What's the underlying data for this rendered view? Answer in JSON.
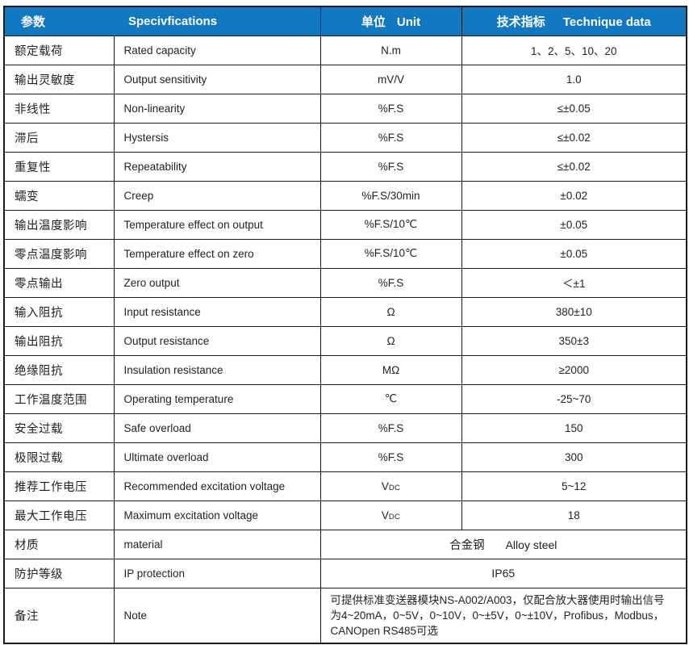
{
  "colors": {
    "header_bg": "#1179C1",
    "header_text": "#ffffff",
    "grid_line": "#1a1a1a",
    "body_text": "#222222"
  },
  "table": {
    "header": {
      "param_cn": "参数",
      "spec_en": "Specivfications",
      "unit_cn": "单位",
      "unit_en": "Unit",
      "data_cn": "技术指标",
      "data_en": "Technique data"
    },
    "rows": [
      {
        "cn": "额定载荷",
        "en": "Rated capacity",
        "unit": "N.m",
        "value": "1、2、5、10、20"
      },
      {
        "cn": "输出灵敏度",
        "en": "Output sensitivity",
        "unit": "mV/V",
        "value": "1.0"
      },
      {
        "cn": "非线性",
        "en": "Non-linearity",
        "unit": "%F.S",
        "value": "≤±0.05"
      },
      {
        "cn": "滞后",
        "en": "Hystersis",
        "unit": "%F.S",
        "value": "≤±0.02"
      },
      {
        "cn": "重复性",
        "en": "Repeatability",
        "unit": "%F.S",
        "value": "≤±0.02"
      },
      {
        "cn": "蠕变",
        "en": "Creep",
        "unit": "%F.S/30min",
        "value": "±0.02"
      },
      {
        "cn": "输出温度影响",
        "en": "Temperature effect on output",
        "unit": "%F.S/10℃",
        "value": "±0.05"
      },
      {
        "cn": "零点温度影响",
        "en": "Temperature effect on zero",
        "unit": "%F.S/10℃",
        "value": "±0.05"
      },
      {
        "cn": "零点输出",
        "en": "Zero output",
        "unit": "%F.S",
        "value": "＜±1"
      },
      {
        "cn": "输入阻抗",
        "en": "Input resistance",
        "unit": "Ω",
        "value": "380±10"
      },
      {
        "cn": "输出阻抗",
        "en": "Output resistance",
        "unit": "Ω",
        "value": "350±3"
      },
      {
        "cn": "绝缘阻抗",
        "en": "Insulation resistance",
        "unit": "MΩ",
        "value": "≥2000"
      },
      {
        "cn": "工作温度范围",
        "en": "Operating temperature",
        "unit": "℃",
        "value": "-25~70"
      },
      {
        "cn": "安全过载",
        "en": "Safe overload",
        "unit": "%F.S",
        "value": "150"
      },
      {
        "cn": "极限过载",
        "en": "Ultimate overload",
        "unit": "%F.S",
        "value": "300"
      },
      {
        "cn": "推荐工作电压",
        "en": "Recommended excitation voltage",
        "unit": {
          "main": "V",
          "sub": "DC"
        },
        "value": "5~12"
      },
      {
        "cn": "最大工作电压",
        "en": "Maximum excitation voltage",
        "unit": {
          "main": "V",
          "sub": "DC"
        },
        "value": "18"
      }
    ],
    "merged_rows": [
      {
        "cn": "材质",
        "en": "material",
        "value_cn": "合金钢",
        "value_en": "Alloy steel",
        "align": "center"
      },
      {
        "cn": "防护等级",
        "en": "IP protection",
        "value": "IP65",
        "align": "center"
      },
      {
        "cn": "备注",
        "en": "Note",
        "value": "可提供标准变送器模块NS-A002/A003，仅配合放大器使用时输出信号为4~20mA，0~5V，0~10V，0~±5V，0~±10V，Profibus，Modbus，CANOpen  RS485可选",
        "align": "left"
      }
    ]
  }
}
